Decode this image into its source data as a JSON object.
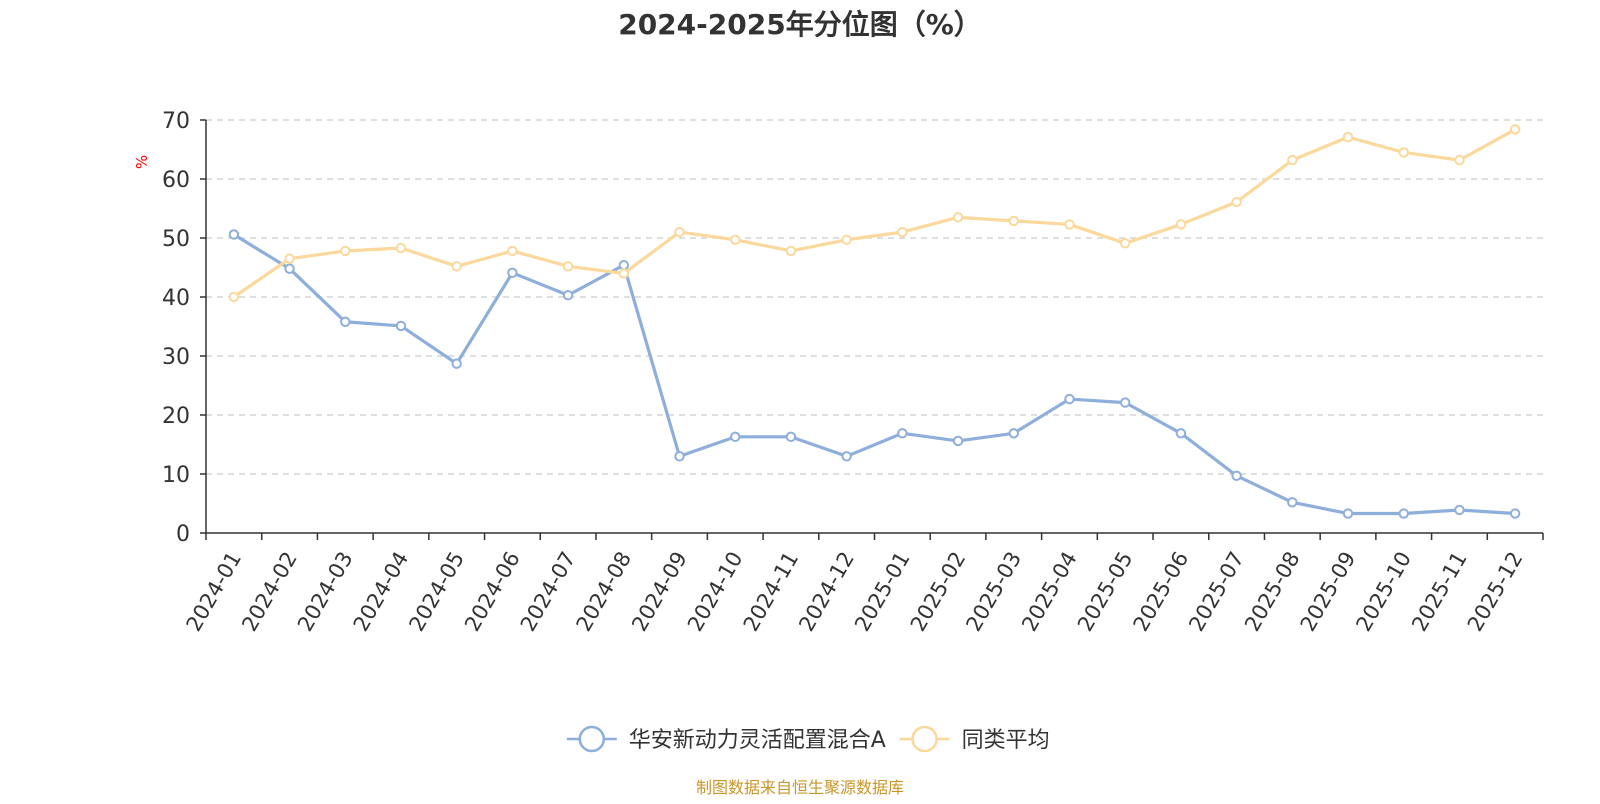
{
  "chart_data": {
    "type": "line",
    "title": "2024-2025年分位图（%）",
    "ylabel": "%",
    "xlabel": "",
    "ylim": [
      0,
      70
    ],
    "yticks": [
      0,
      10,
      20,
      30,
      40,
      50,
      60,
      70
    ],
    "grid": true,
    "legend_position": "bottom-center",
    "categories": [
      "2024-01",
      "2024-02",
      "2024-03",
      "2024-04",
      "2024-05",
      "2024-06",
      "2024-07",
      "2024-08",
      "2024-09",
      "2024-10",
      "2024-11",
      "2024-12",
      "2025-01",
      "2025-02",
      "2025-03",
      "2025-04",
      "2025-05",
      "2025-06",
      "2025-07",
      "2025-08",
      "2025-09",
      "2025-10",
      "2025-11",
      "2025-12"
    ],
    "series": [
      {
        "name": "华安新动力灵活配置混合A",
        "color": "#8eaedb",
        "values": [
          50.6,
          44.8,
          35.8,
          35.1,
          28.7,
          44.1,
          40.3,
          45.4,
          13.0,
          16.3,
          16.3,
          13.0,
          16.9,
          15.6,
          16.9,
          22.7,
          22.1,
          16.9,
          9.7,
          5.2,
          3.3,
          3.3,
          3.9,
          3.3
        ]
      },
      {
        "name": "同类平均",
        "color": "#fbd89b",
        "values": [
          40.0,
          46.5,
          47.8,
          48.3,
          45.2,
          47.8,
          45.2,
          44.0,
          51.0,
          49.7,
          47.8,
          49.7,
          51.0,
          53.5,
          52.9,
          52.3,
          49.1,
          52.3,
          56.1,
          63.2,
          67.1,
          64.5,
          63.2,
          68.4
        ]
      }
    ]
  },
  "source_note": "制图数据来自恒生聚源数据库",
  "colors": {
    "title": "#333333",
    "axis": "#333333",
    "grid": "#cccccc",
    "ylabel": "#ff0000",
    "source_note": "#c8962a"
  }
}
